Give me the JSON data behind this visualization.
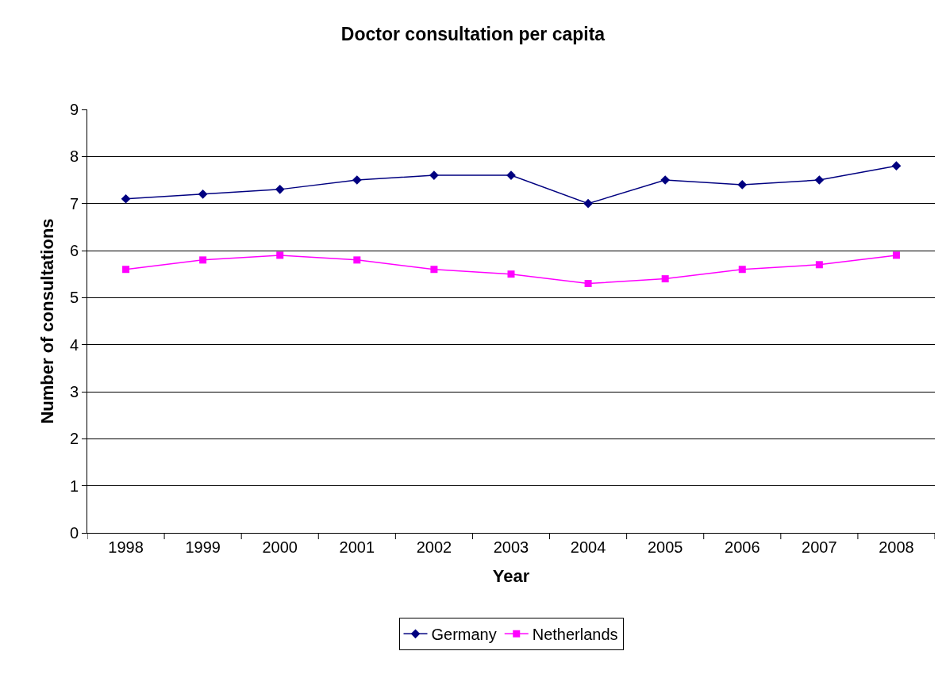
{
  "chart_data": {
    "type": "line",
    "title": "Doctor consultation per capita",
    "xlabel": "Year",
    "ylabel": "Number of consultations",
    "categories": [
      "1998",
      "1999",
      "2000",
      "2001",
      "2002",
      "2003",
      "2004",
      "2005",
      "2006",
      "2007",
      "2008"
    ],
    "series": [
      {
        "name": "Germany",
        "color": "#000080",
        "marker": "diamond",
        "values": [
          7.1,
          7.2,
          7.3,
          7.5,
          7.6,
          7.6,
          7.0,
          7.5,
          7.4,
          7.5,
          7.8
        ]
      },
      {
        "name": "Netherlands",
        "color": "#ff00ff",
        "marker": "square",
        "values": [
          5.6,
          5.8,
          5.9,
          5.8,
          5.6,
          5.5,
          5.3,
          5.4,
          5.6,
          5.7,
          5.9
        ]
      }
    ],
    "ylim": [
      0,
      9
    ],
    "yticks": [
      0,
      1,
      2,
      3,
      4,
      5,
      6,
      7,
      8,
      9
    ],
    "grid": "y",
    "legend": "bottom",
    "line_style": "solid"
  }
}
